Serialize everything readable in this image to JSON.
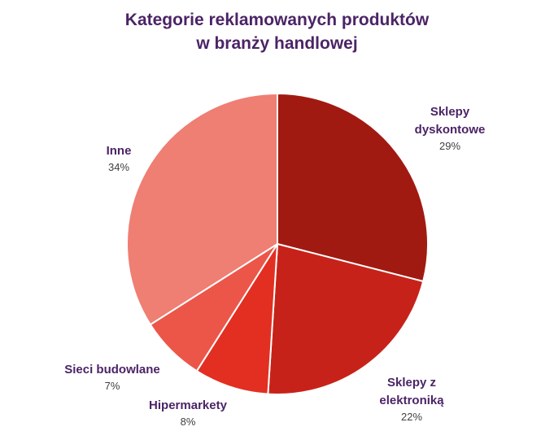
{
  "chart_data": {
    "type": "pie",
    "title_lines": [
      "Kategorie reklamowanych produktów",
      "w branży handlowej"
    ],
    "slices": [
      {
        "label_lines": [
          "Sklepy",
          "dyskontowe"
        ],
        "pct_label": "29%",
        "value": 29,
        "color": "#a11a12"
      },
      {
        "label_lines": [
          "Sklepy z",
          "elektroniką"
        ],
        "pct_label": "22%",
        "value": 22,
        "color": "#c72219"
      },
      {
        "label_lines": [
          "Hipermarkety"
        ],
        "pct_label": "8%",
        "value": 8,
        "color": "#e22f22"
      },
      {
        "label_lines": [
          "Sieci budowlane"
        ],
        "pct_label": "7%",
        "value": 7,
        "color": "#ec5649"
      },
      {
        "label_lines": [
          "Inne"
        ],
        "pct_label": "34%",
        "value": 34,
        "color": "#ef7e73"
      }
    ],
    "legend": "none (direct labels)"
  }
}
